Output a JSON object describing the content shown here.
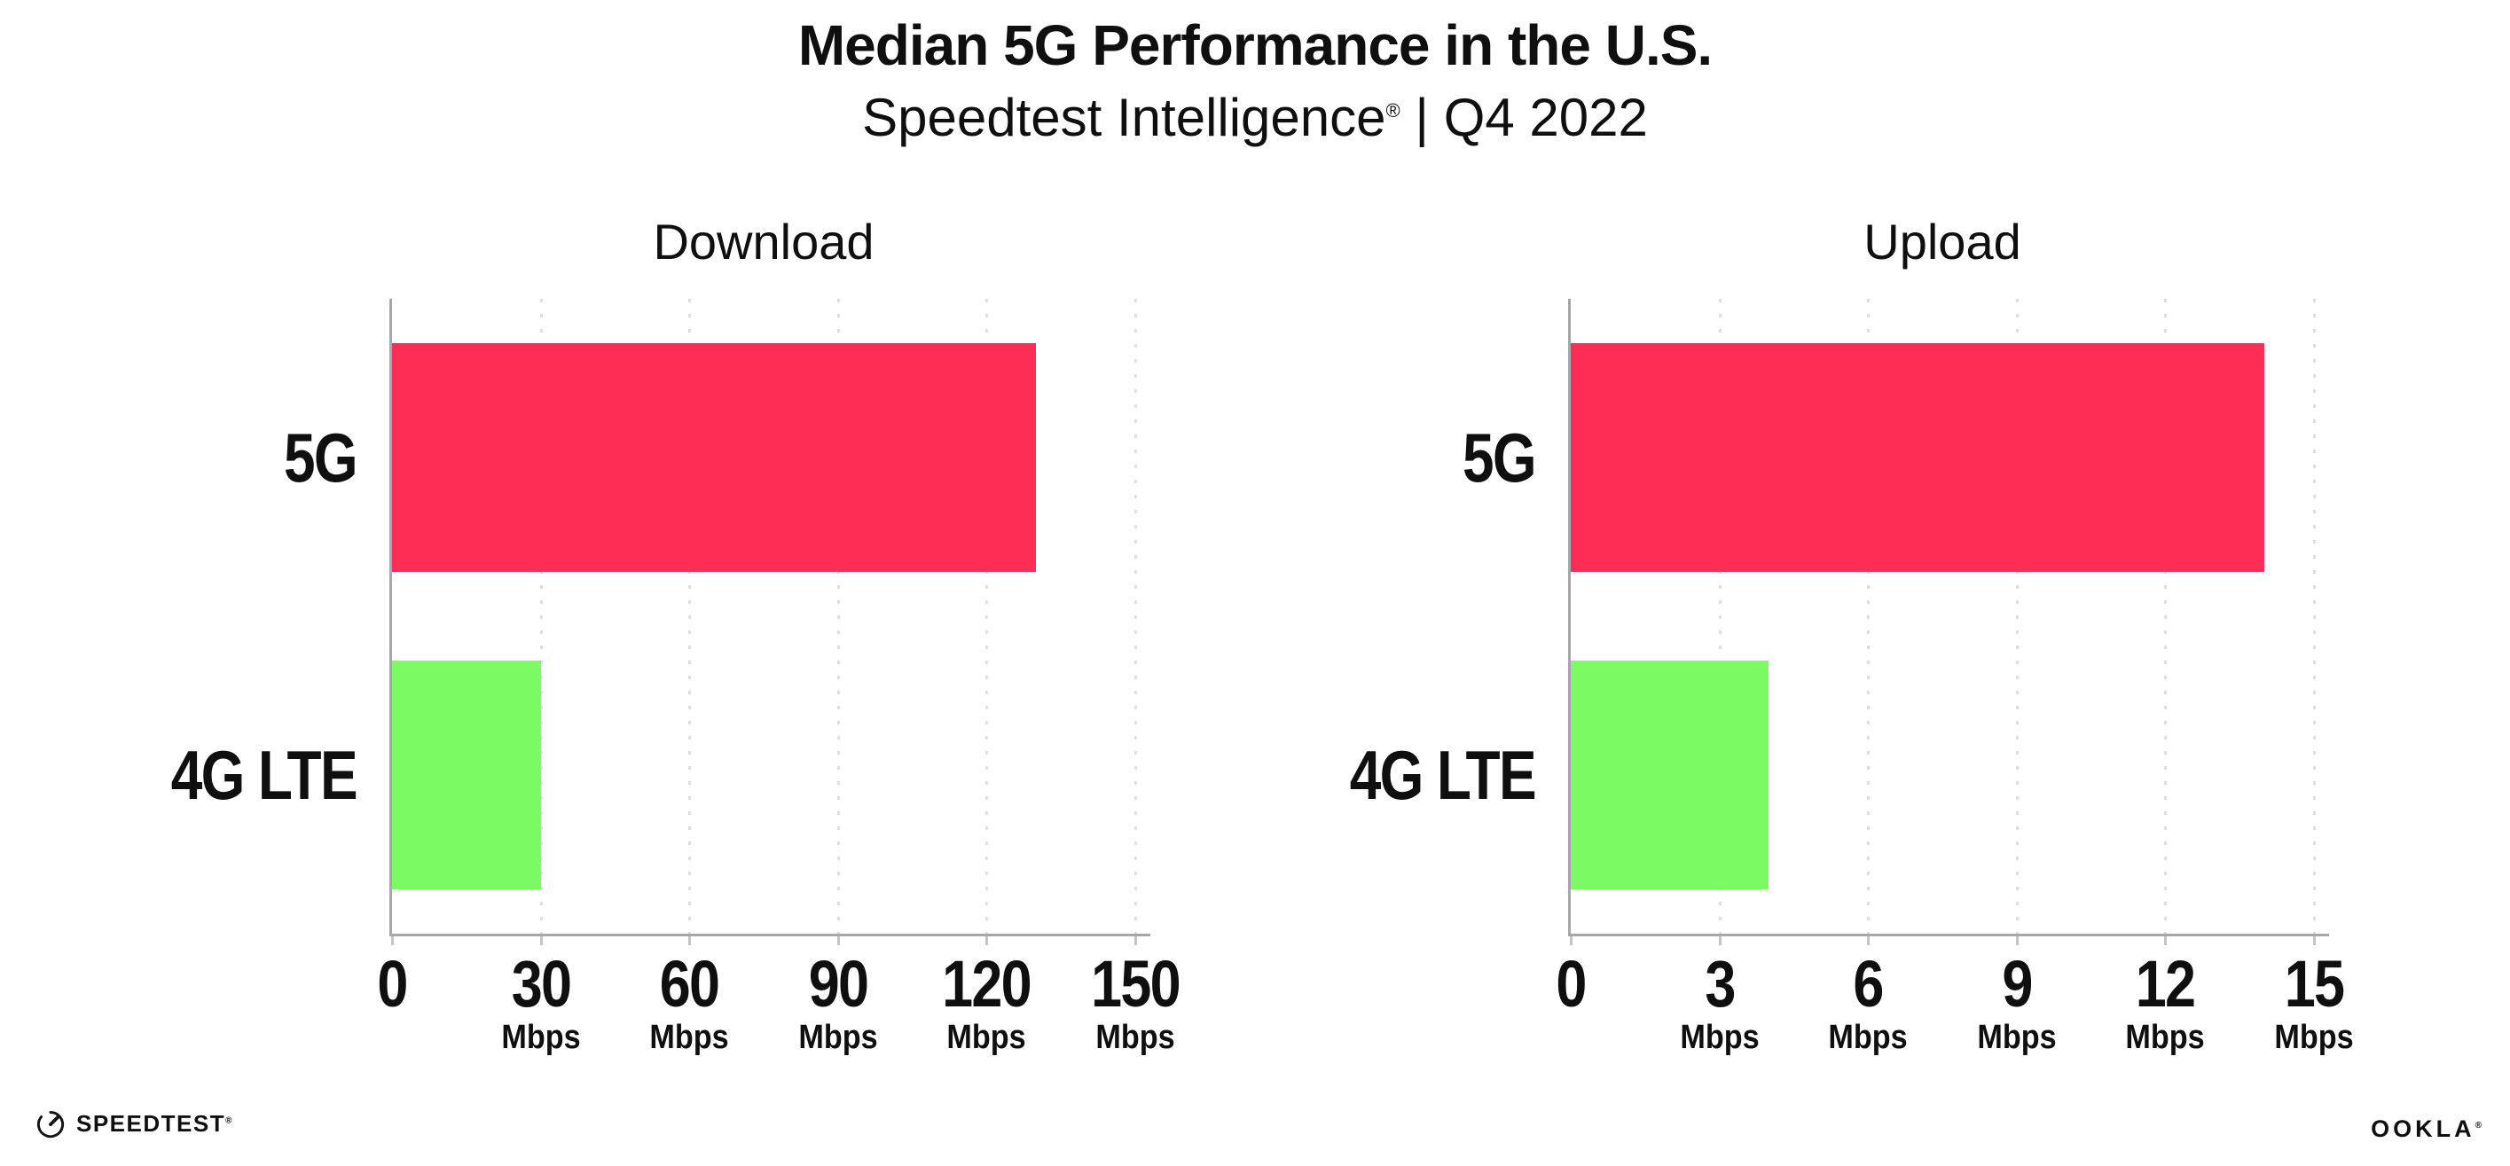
{
  "header": {
    "title": "Median 5G Performance in the U.S.",
    "subtitle_brand": "Speedtest Intelligence",
    "subtitle_reg": "®",
    "subtitle_sep": " | ",
    "subtitle_period": "Q4 2022"
  },
  "colors": {
    "bar_5g": "#FC2D55",
    "bar_4g": "#7DFB64",
    "axis": "#a6a6ad",
    "grid_dots": "#dedee6",
    "text": "#0f0f0f"
  },
  "chart_data": [
    {
      "type": "bar",
      "orientation": "horizontal",
      "title": "Download",
      "categories": [
        "5G",
        "4G LTE"
      ],
      "values": [
        130,
        30
      ],
      "unit": "Mbps",
      "xlim": [
        0,
        150
      ],
      "xticks": [
        0,
        30,
        60,
        90,
        120,
        150
      ],
      "tick_unit_label": "Mbps",
      "grid": "dotted-vertical",
      "legend": "none",
      "bar_colors": [
        "#FC2D55",
        "#7DFB64"
      ]
    },
    {
      "type": "bar",
      "orientation": "horizontal",
      "title": "Upload",
      "categories": [
        "5G",
        "4G LTE"
      ],
      "values": [
        14,
        4
      ],
      "unit": "Mbps",
      "xlim": [
        0,
        15
      ],
      "xticks": [
        0,
        3,
        6,
        9,
        12,
        15
      ],
      "tick_unit_label": "Mbps",
      "grid": "dotted-vertical",
      "legend": "none",
      "bar_colors": [
        "#FC2D55",
        "#7DFB64"
      ]
    }
  ],
  "footer": {
    "speedtest_text": "SPEEDTEST",
    "speedtest_reg": "®",
    "ookla_text": "OOKLA",
    "ookla_reg": "®"
  }
}
